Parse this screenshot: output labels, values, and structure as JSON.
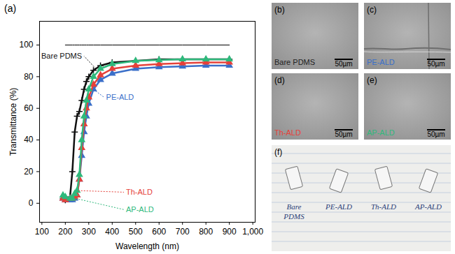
{
  "chart_data": {
    "type": "line",
    "panel": "(a)",
    "x_label": "Wavelength (nm)",
    "y_label": "Transmittance (%)",
    "xlim": [
      90,
      1010
    ],
    "xticks": [
      100,
      200,
      300,
      400,
      500,
      600,
      700,
      800,
      900,
      1000
    ],
    "ylim": [
      -12,
      115
    ],
    "yticks": [
      0,
      20,
      40,
      60,
      80,
      100
    ],
    "x": [
      190,
      200,
      220,
      230,
      240,
      250,
      260,
      270,
      280,
      290,
      300,
      320,
      350,
      400,
      500,
      600,
      700,
      800,
      900
    ],
    "series": [
      {
        "color": "#000000",
        "values": [
          null,
          100,
          100,
          100,
          100,
          100,
          100,
          100,
          100,
          100,
          100,
          100,
          100,
          100,
          100,
          100,
          100,
          100,
          100
        ]
      },
      {
        "name": "Bare PDMS",
        "color": "#111111",
        "marker": "plus",
        "values": [
          3,
          2,
          4,
          20,
          45,
          55,
          58,
          65,
          72,
          77,
          80,
          84,
          87,
          89,
          90,
          91,
          91,
          91,
          91
        ]
      },
      {
        "name": "PE-ALD",
        "color": "#3a6fc9",
        "marker": "triangle",
        "values": [
          3,
          2,
          2,
          2,
          3,
          5,
          15,
          30,
          45,
          55,
          63,
          72,
          78,
          82,
          85,
          86,
          86.5,
          87,
          87
        ]
      },
      {
        "name": "Th-ALD",
        "color": "#e5413a",
        "marker": "triangle",
        "values": [
          3,
          2,
          3,
          3,
          4,
          5,
          15,
          35,
          50,
          60,
          67,
          75,
          81,
          85,
          87,
          88,
          88.5,
          89,
          89
        ]
      },
      {
        "name": "AP-ALD",
        "color": "#2fb97c",
        "marker": "triangle",
        "values": [
          5,
          4,
          3,
          3,
          6,
          8,
          18,
          40,
          55,
          65,
          72,
          80,
          85,
          88,
          90,
          90.5,
          91,
          91,
          91
        ]
      }
    ],
    "annotations": [
      {
        "text": "Bare PDMS",
        "x": 280,
        "y": 93,
        "point_x": 330,
        "point_y": 85,
        "color": "#111111"
      },
      {
        "text": "PE-ALD",
        "x": 365,
        "y": 67,
        "point_x": 320,
        "point_y": 72,
        "color": "#3a6fc9"
      },
      {
        "text": "Th-ALD",
        "x": 450,
        "y": 7,
        "point_x": 255,
        "point_y": 8,
        "color": "#e5413a"
      },
      {
        "text": "AP-ALD",
        "x": 450,
        "y": -4,
        "point_x": 245,
        "point_y": 3,
        "color": "#2fb97c"
      }
    ]
  },
  "panels": [
    {
      "letter": "(b)",
      "label": "Bare PDMS",
      "color": "#222222",
      "scale_bar": "50µm"
    },
    {
      "letter": "(c)",
      "label": "PE-ALD",
      "color": "#3a6fc9",
      "scale_bar": "50µm"
    },
    {
      "letter": "(d)",
      "label": "Th-ALD",
      "color": "#e5413a",
      "scale_bar": "50µm"
    },
    {
      "letter": "(e)",
      "label": "AP-ALD",
      "color": "#2fb97c",
      "scale_bar": "50µm"
    }
  ],
  "photo": {
    "letter": "(f)",
    "labels": [
      "Bare PDMS",
      "PE-ALD",
      "Th-ALD",
      "AP-ALD"
    ]
  }
}
